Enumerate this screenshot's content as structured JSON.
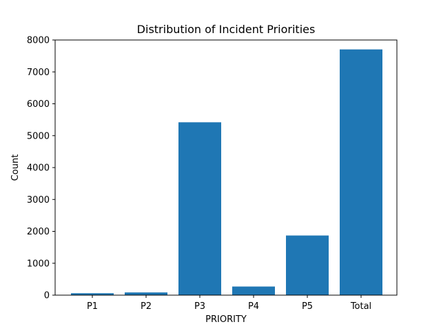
{
  "chart_data": {
    "type": "bar",
    "title": "Distribution of Incident Priorities",
    "xlabel": "PRIORITY",
    "ylabel": "Count",
    "categories": [
      "P1",
      "P2",
      "P3",
      "P4",
      "P5",
      "Total"
    ],
    "values": [
      60,
      85,
      5420,
      270,
      1870,
      7705
    ],
    "ylim": [
      0,
      8000
    ],
    "yticks": [
      0,
      1000,
      2000,
      3000,
      4000,
      5000,
      6000,
      7000,
      8000
    ],
    "bar_color": "#1f77b4",
    "grid": false
  }
}
